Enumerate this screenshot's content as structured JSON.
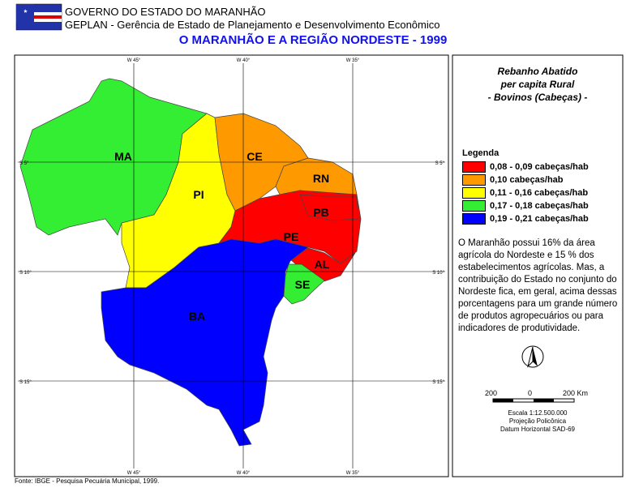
{
  "header": {
    "line1": "GOVERNO DO ESTADO DO MARANHÃO",
    "line2": "GEPLAN - Gerência de Estado de Planejamento e Desenvolvimento Econômico",
    "title": "O MARANHÃO E A REGIÃO NORDESTE - 1999"
  },
  "grid": {
    "longitudes": [
      "W 45°",
      "W 40°",
      "W 35°"
    ],
    "latitudes": [
      "S 5°",
      "S 10°",
      "S 15°"
    ]
  },
  "states": [
    {
      "label": "MA",
      "color": "#33ee33"
    },
    {
      "label": "PI",
      "color": "#ffff00"
    },
    {
      "label": "CE",
      "color": "#ff9900"
    },
    {
      "label": "RN",
      "color": "#ff9900"
    },
    {
      "label": "PE",
      "color": "#ff0000"
    },
    {
      "label": "PB",
      "color": "#ff0000"
    },
    {
      "label": "AL",
      "color": "#ff0000"
    },
    {
      "label": "BA",
      "color": "#0000ff"
    },
    {
      "label": "SE",
      "color": "#33ee33"
    }
  ],
  "panel": {
    "title": [
      "Rebanho Abatido",
      "per capita Rural",
      "- Bovinos (Cabeças) -"
    ],
    "legend_title": "Legenda",
    "legend": [
      {
        "label": "0,08 - 0,09 cabeças/hab",
        "color": "#ff0000"
      },
      {
        "label": "0,10 cabeças/hab",
        "color": "#ff9900"
      },
      {
        "label": "0,11 - 0,16 cabeças/hab",
        "color": "#ffff00"
      },
      {
        "label": "0,17 - 0,18 cabeças/hab",
        "color": "#33ee33"
      },
      {
        "label": "0,19 - 0,21 cabeças/hab",
        "color": "#0000ff"
      }
    ],
    "text": "O Maranhão possui 16% da área agrícola do Nordeste e 15 % dos estabelecimentos agrícolas. Mas, a contribuição do Estado no conjunto do Nordeste fica, em geral, acima dessas porcentagens para um grande número de produtos agropecuários ou para indicadores de produtividade.",
    "scale": {
      "left": "200",
      "zero": "0",
      "right": "200 Km",
      "lines": [
        "Escala 1:12.500.000",
        "Projeção Policônica",
        "Datum Horizontal SAD-69"
      ]
    }
  },
  "footer": "Fonte: IBGE - Pesquisa Pecuária Municipal, 1999."
}
